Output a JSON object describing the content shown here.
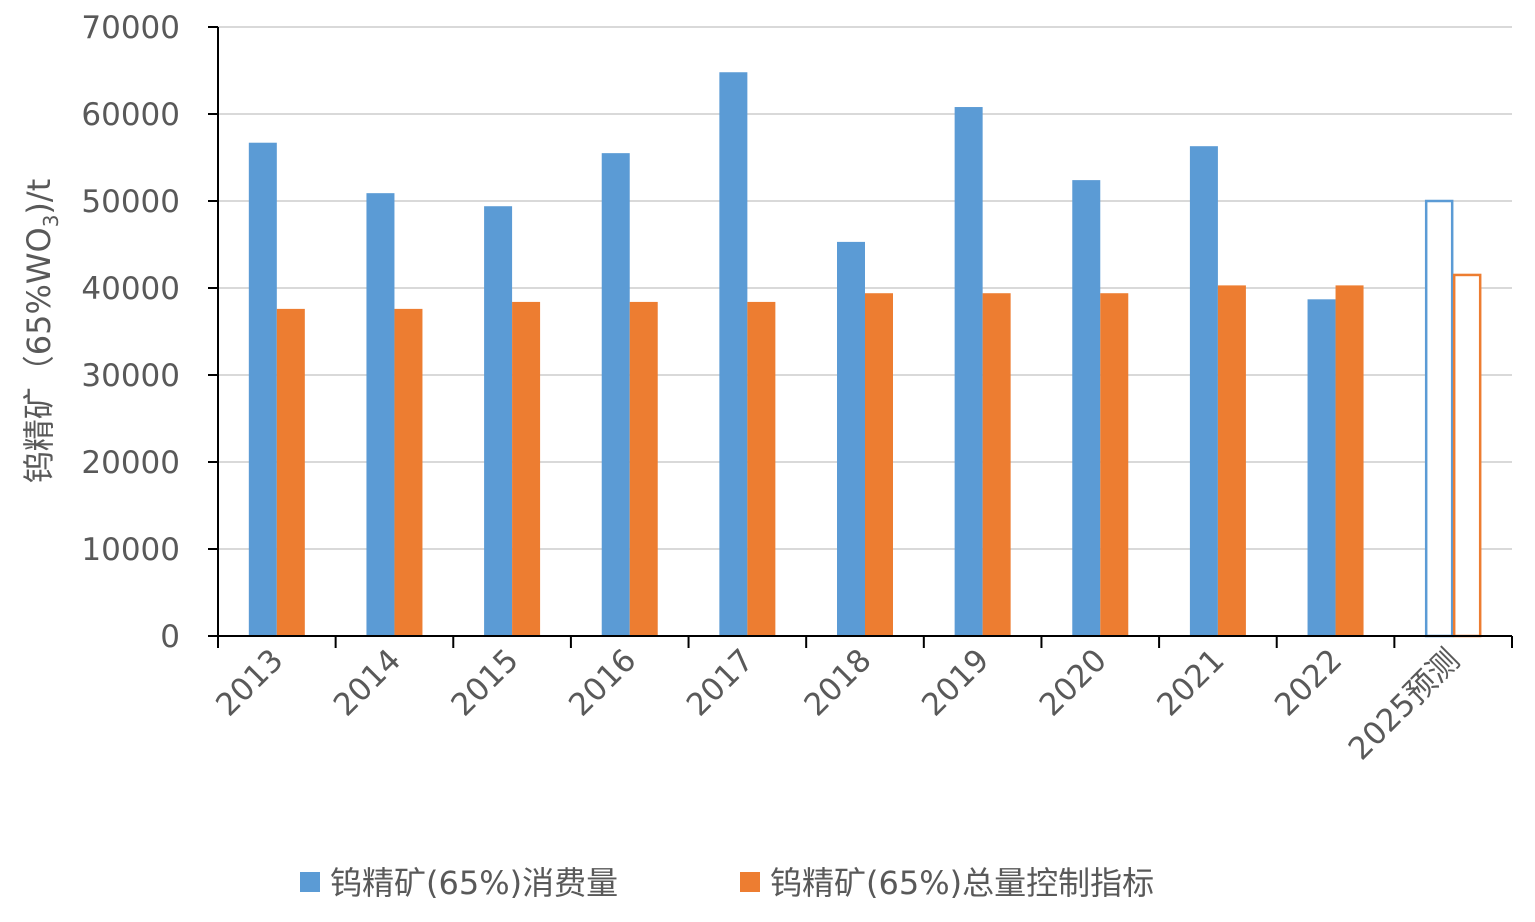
{
  "chart_data": {
    "type": "bar",
    "title": "",
    "xlabel": "",
    "ylabel": "钨精矿（65%WO",
    "ylabel_sub": "3",
    "ylabel_suffix": ")/t",
    "ylim": [
      0,
      70000
    ],
    "yticks": [
      0,
      10000,
      20000,
      30000,
      40000,
      50000,
      60000,
      70000
    ],
    "grid": true,
    "legend_position": "bottom",
    "categories": [
      "2013",
      "2014",
      "2015",
      "2016",
      "2017",
      "2018",
      "2019",
      "2020",
      "2021",
      "2022",
      "2025预测"
    ],
    "series": [
      {
        "name": "钨精矿(65%)消费量",
        "color": "#5B9BD5",
        "values": [
          56700,
          50900,
          49400,
          55500,
          64800,
          45300,
          60800,
          52400,
          56300,
          38700,
          50000
        ]
      },
      {
        "name": "钨精矿(65%)总量控制指标",
        "color": "#ED7D31",
        "values": [
          37600,
          37600,
          38400,
          38400,
          38400,
          39400,
          39400,
          39400,
          40300,
          40300,
          41500
        ]
      }
    ],
    "forecast_categories": [
      "2025预测"
    ]
  }
}
